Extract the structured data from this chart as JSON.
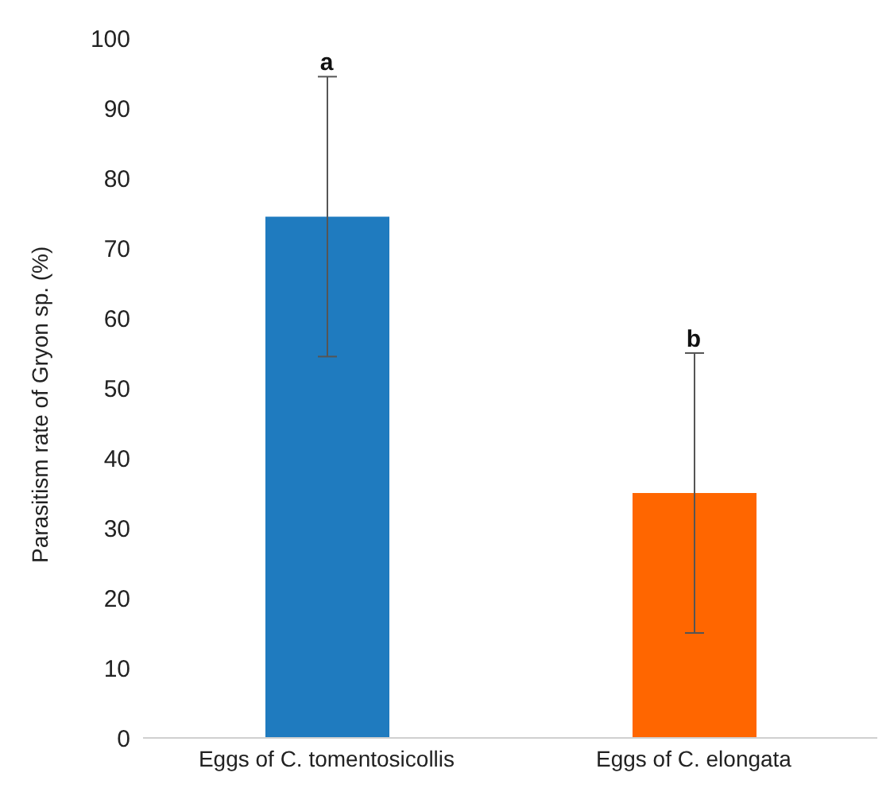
{
  "chart_data": {
    "type": "bar",
    "ylabel": "Parasitism rate of Gryon sp. (%)",
    "categories": [
      "Eggs of C. tomentosicollis",
      "Eggs of C. elongata"
    ],
    "values": [
      74.5,
      35
    ],
    "colors": [
      "#1f7bbf",
      "#ff6600"
    ],
    "errors": [
      20,
      20
    ],
    "ylim": [
      0,
      100
    ],
    "yticks": [
      0,
      10,
      20,
      30,
      40,
      50,
      60,
      70,
      80,
      90,
      100
    ],
    "grid": false,
    "legend": false,
    "annotations": [
      {
        "text": "a",
        "x": "Eggs of C. tomentosicollis",
        "y": 94.5
      },
      {
        "text": "b",
        "x": "Eggs of C. elongata",
        "y": 55
      }
    ]
  }
}
